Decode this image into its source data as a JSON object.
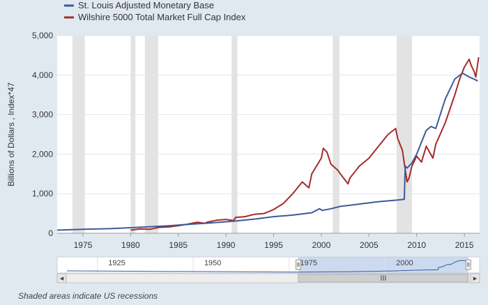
{
  "chart_data": {
    "type": "line",
    "xlabel": "",
    "ylabel": "Billions of Dollars , Index*47",
    "xlim": [
      1972.3,
      2016.6
    ],
    "ylim": [
      0,
      5000
    ],
    "y_ticks": [
      0,
      1000,
      2000,
      3000,
      4000,
      5000
    ],
    "y_tick_labels": [
      "0",
      "1,000",
      "2,000",
      "3,000",
      "4,000",
      "5,000"
    ],
    "x_ticks": [
      1975,
      1980,
      1985,
      1990,
      1995,
      2000,
      2005,
      2010,
      2015
    ],
    "x_tick_labels": [
      "1975",
      "1980",
      "1985",
      "1990",
      "1995",
      "2000",
      "2005",
      "2010",
      "2015"
    ],
    "grid": true,
    "legend_position": "top-left",
    "recessions": [
      [
        1973.9,
        1975.2
      ],
      [
        1980.0,
        1980.5
      ],
      [
        1981.5,
        1982.9
      ],
      [
        1990.6,
        1991.2
      ],
      [
        2001.2,
        2001.9
      ],
      [
        2007.9,
        2009.5
      ]
    ],
    "series": [
      {
        "name": "St. Louis Adjusted Monetary Base",
        "color": "#3c5a99",
        "x": [
          1972.3,
          1975,
          1978,
          1980,
          1982,
          1984,
          1986,
          1988,
          1990,
          1991,
          1993,
          1995,
          1997,
          1999,
          1999.8,
          2000.1,
          2001,
          2002,
          2004,
          2006,
          2008,
          2008.7,
          2008.8,
          2009,
          2009.5,
          2010,
          2011,
          2011.5,
          2012,
          2013,
          2014,
          2014.8,
          2015.5,
          2016,
          2016.4
        ],
        "y": [
          80,
          100,
          120,
          140,
          165,
          190,
          225,
          255,
          290,
          310,
          360,
          420,
          460,
          520,
          620,
          580,
          620,
          680,
          740,
          800,
          840,
          860,
          1700,
          1650,
          1780,
          2000,
          2600,
          2700,
          2650,
          3400,
          3900,
          4050,
          3950,
          3900,
          3850
        ]
      },
      {
        "name": "Wilshire 5000 Total Market Full Cap Index",
        "color": "#a62a2a",
        "x": [
          1980,
          1981,
          1982,
          1983,
          1984,
          1985,
          1986,
          1987,
          1987.8,
          1988,
          1989,
          1990,
          1990.8,
          1991,
          1992,
          1993,
          1994,
          1995,
          1996,
          1997,
          1998,
          1998.7,
          1999,
          2000,
          2000.2,
          2000.6,
          2001,
          2001.7,
          2002,
          2002.8,
          2003,
          2004,
          2005,
          2006,
          2007,
          2007.8,
          2008,
          2008.5,
          2008.8,
          2009,
          2009.2,
          2009.5,
          2010,
          2010.5,
          2011,
          2011.7,
          2012,
          2013,
          2014,
          2014.5,
          2015,
          2015.5,
          2015.7,
          2016,
          2016.2,
          2016.5
        ],
        "y": [
          80,
          110,
          100,
          150,
          160,
          190,
          230,
          280,
          250,
          280,
          330,
          350,
          320,
          400,
          420,
          480,
          500,
          600,
          750,
          1000,
          1300,
          1150,
          1500,
          1900,
          2150,
          2050,
          1750,
          1600,
          1500,
          1250,
          1400,
          1700,
          1900,
          2200,
          2500,
          2650,
          2400,
          2100,
          1600,
          1300,
          1400,
          1700,
          1950,
          1800,
          2200,
          1900,
          2250,
          2800,
          3500,
          3900,
          4200,
          4400,
          4250,
          4100,
          3950,
          4450
        ]
      }
    ],
    "navigator": {
      "x_ticks": [
        1925,
        1950,
        1975,
        2000
      ],
      "x_tick_labels": [
        "1925",
        "1950",
        "1975",
        "2000"
      ],
      "xlim": [
        1912,
        2017
      ],
      "selected_range": [
        1972.3,
        2016.6
      ]
    }
  },
  "footnote": "Shaded areas indicate US recessions",
  "scrollbar": {
    "left_arrow": "◂",
    "right_arrow": "▸",
    "grip": "III"
  },
  "colors": {
    "background": "#e1e9f0",
    "plot_background": "#ffffff",
    "recession_band": "#e3e3e3",
    "monetary_base": "#3c5a99",
    "wilshire": "#a62a2a",
    "navigator_fill": "#b9cde8"
  }
}
